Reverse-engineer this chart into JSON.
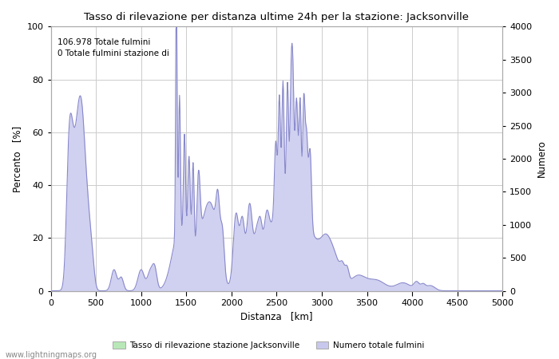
{
  "title": "Tasso di rilevazione per distanza ultime 24h per la stazione: Jacksonville",
  "xlabel": "Distanza   [km]",
  "ylabel_left": "Percento   [%]",
  "ylabel_right": "Numero",
  "xlim": [
    0,
    5000
  ],
  "ylim_left": [
    0,
    100
  ],
  "ylim_right": [
    0,
    4000
  ],
  "yticks_left": [
    0,
    20,
    40,
    60,
    80,
    100
  ],
  "yticks_right": [
    0,
    500,
    1000,
    1500,
    2000,
    2500,
    3000,
    3500,
    4000
  ],
  "xticks": [
    0,
    500,
    1000,
    1500,
    2000,
    2500,
    3000,
    3500,
    4000,
    4500,
    5000
  ],
  "annotation": "106.978 Totale fulmini\n0 Totale fulmini stazione di",
  "legend_labels": [
    "Tasso di rilevazione stazione Jacksonville",
    "Numero totale fulmini"
  ],
  "legend_colors": [
    "#b8e8b8",
    "#c8c8ee"
  ],
  "fill_color": "#d0d0f0",
  "line_color": "#8888cc",
  "watermark": "www.lightningmaps.org",
  "bg_color": "#ffffff",
  "grid_color": "#cccccc"
}
